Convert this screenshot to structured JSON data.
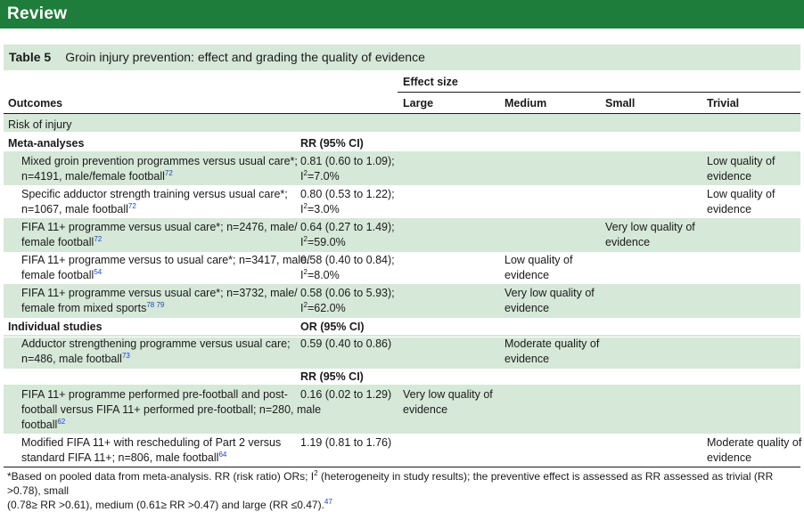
{
  "header": {
    "section": "Review",
    "table_label": "Table 5",
    "table_title": "Groin injury prevention: effect and grading the quality of evidence"
  },
  "columns": {
    "outcomes": "Outcomes",
    "effect_size": "Effect size",
    "large": "Large",
    "medium": "Medium",
    "small": "Small",
    "trivial": "Trivial"
  },
  "section_label": "Risk of injury",
  "group_meta": {
    "label": "Meta-analyses",
    "stat": "RR (95% CI)"
  },
  "group_individual": {
    "label": "Individual studies",
    "stat_or": "OR (95% CI)",
    "stat_rr": "RR (95% CI)"
  },
  "rows": [
    {
      "outcome_l1": "Mixed groin prevention programmes versus usual care*;",
      "outcome_l2": "n=4191, male/female football",
      "ref": "72",
      "stat_l1": "0.81 (0.60 to 1.09);",
      "i2": "=7.0%",
      "trivial_l1": "Low quality of",
      "trivial_l2": "evidence"
    },
    {
      "outcome_l1": "Specific adductor strength training versus usual care*;",
      "outcome_l2": "n=1067, male football",
      "ref": "72",
      "stat_l1": "0.80 (0.53 to 1.22);",
      "i2": "=3.0%",
      "trivial_l1": "Low quality of",
      "trivial_l2": "evidence"
    },
    {
      "outcome_l1": "FIFA 11+ programme versus usual care*; n=2476, male/",
      "outcome_l2": "female football",
      "ref": "72",
      "stat_l1": "0.64 (0.27 to 1.49);",
      "i2": "=59.0%",
      "small_l1": "Very low quality of",
      "small_l2": "evidence"
    },
    {
      "outcome_l1": "FIFA 11+ programme versus to usual care*; n=3417, male/",
      "outcome_l2": "female football",
      "ref": "54",
      "stat_l1": "0.58 (0.40 to 0.84);",
      "i2": "=8.0%",
      "medium_l1": "Low quality of",
      "medium_l2": "evidence"
    },
    {
      "outcome_l1": "FIFA 11+ programme versus usual care*; n=3732, male/",
      "outcome_l2": "female from mixed sports",
      "ref": "78 79",
      "stat_l1": "0.58 (0.06 to 5.93);",
      "i2": "=62.0%",
      "medium_l1": "Very low quality of",
      "medium_l2": "evidence"
    },
    {
      "outcome_l1": "Adductor strengthening programme versus usual care;",
      "outcome_l2": "n=486, male football",
      "ref": "73",
      "stat_l1": "0.59 (0.40 to 0.86)",
      "medium_l1": "Moderate quality of",
      "medium_l2": "evidence"
    },
    {
      "outcome_l1": "FIFA 11+ programme performed pre-football and post-",
      "outcome_l2": "football versus FIFA 11+ performed pre-football; n=280, male",
      "outcome_l3": "football",
      "ref": "62",
      "stat_l1": "0.16 (0.02 to 1.29)",
      "large_l1": "Very low quality of",
      "large_l2": "evidence"
    },
    {
      "outcome_l1": "Modified FIFA 11+ with rescheduling of Part 2 versus",
      "outcome_l2": "standard FIFA 11+; n=806, male football",
      "ref": "64",
      "stat_l1": "1.19 (0.81 to 1.76)",
      "trivial_l1": "Moderate quality of",
      "trivial_l2": "evidence"
    }
  ],
  "i2_letter": "I",
  "i2_exp": "2",
  "footnote": {
    "line1_a": "*Based on pooled data from meta-analysis. RR (risk ratio) ORs; I",
    "line1_sup": "2",
    "line1_b": " (heterogeneity in study results); the preventive effect is assessed as RR assessed as trivial (RR >0.78), small",
    "line2": "(0.78≥ RR >0.61), medium (0.61≥ RR >0.47) and large (RR ≤0.47).",
    "ref": "47"
  }
}
